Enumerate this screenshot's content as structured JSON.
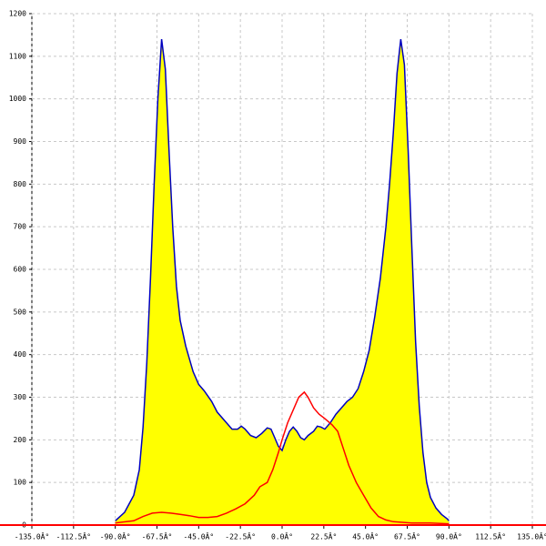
{
  "chart_data": {
    "type": "area",
    "xlim": [
      -135,
      135
    ],
    "ylim": [
      0,
      1200
    ],
    "xticks": [
      {
        "value": -135,
        "label": "-135.0Â°"
      },
      {
        "value": -112.5,
        "label": "-112.5Â°"
      },
      {
        "value": -90,
        "label": "-90.0Â°"
      },
      {
        "value": -67.5,
        "label": "-67.5Â°"
      },
      {
        "value": -45,
        "label": "-45.0Â°"
      },
      {
        "value": -22.5,
        "label": "-22.5Â°"
      },
      {
        "value": 0,
        "label": "0.0Â°"
      },
      {
        "value": 22.5,
        "label": "22.5Â°"
      },
      {
        "value": 45,
        "label": "45.0Â°"
      },
      {
        "value": 67.5,
        "label": "67.5Â°"
      },
      {
        "value": 90,
        "label": "90.0Â°"
      },
      {
        "value": 112.5,
        "label": "112.5Â°"
      },
      {
        "value": 135,
        "label": "135.0Â°"
      }
    ],
    "yticks": [
      0,
      100,
      200,
      300,
      400,
      500,
      600,
      700,
      800,
      900,
      1000,
      1100,
      1200
    ],
    "grid": true,
    "series": [
      {
        "color": "#0000c0",
        "fill": "#ffff00",
        "x": [
          -90,
          -85,
          -80,
          -77,
          -75,
          -73,
          -71,
          -69,
          -67,
          -65,
          -63,
          -61,
          -59,
          -57,
          -55,
          -52,
          -48,
          -45,
          -42,
          -38,
          -35,
          -30,
          -27,
          -24,
          -22,
          -20,
          -17,
          -14,
          -11,
          -8,
          -6,
          -4,
          -2,
          0,
          2,
          4,
          6,
          8,
          10,
          12,
          14,
          17,
          19,
          21,
          23,
          26,
          29,
          32,
          35,
          38,
          41,
          44,
          47,
          50,
          53,
          56,
          58,
          60,
          62,
          64,
          66,
          68,
          70,
          72,
          74,
          76,
          78,
          80,
          83,
          86,
          89,
          90
        ],
        "values": [
          10,
          30,
          70,
          130,
          230,
          380,
          580,
          800,
          1000,
          1140,
          1070,
          880,
          700,
          560,
          480,
          420,
          360,
          330,
          315,
          290,
          265,
          240,
          225,
          225,
          232,
          225,
          210,
          205,
          215,
          228,
          225,
          205,
          185,
          175,
          200,
          220,
          230,
          220,
          205,
          200,
          210,
          220,
          232,
          230,
          225,
          240,
          260,
          275,
          290,
          300,
          320,
          360,
          410,
          490,
          580,
          700,
          800,
          920,
          1060,
          1140,
          1080,
          880,
          650,
          430,
          280,
          170,
          100,
          65,
          40,
          25,
          15,
          10
        ]
      },
      {
        "color": "#ff0000",
        "x": [
          -90,
          -80,
          -75,
          -70,
          -65,
          -60,
          -55,
          -50,
          -45,
          -40,
          -35,
          -30,
          -25,
          -20,
          -15,
          -12,
          -8,
          -5,
          -2,
          0,
          3,
          6,
          9,
          12,
          14,
          17,
          20,
          23,
          27,
          30,
          33,
          36,
          40,
          44,
          48,
          52,
          56,
          60,
          70,
          80,
          90
        ],
        "values": [
          5,
          10,
          20,
          28,
          30,
          28,
          25,
          22,
          18,
          18,
          20,
          28,
          38,
          50,
          70,
          90,
          100,
          130,
          170,
          200,
          240,
          270,
          300,
          312,
          300,
          275,
          260,
          250,
          235,
          220,
          180,
          140,
          100,
          70,
          40,
          20,
          12,
          8,
          5,
          5,
          3
        ]
      }
    ]
  }
}
